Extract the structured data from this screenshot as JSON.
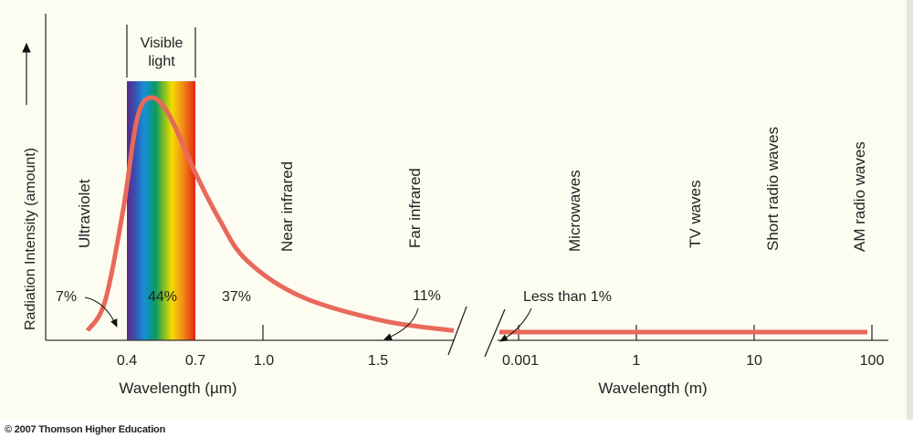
{
  "chart_data": {
    "type": "line",
    "ylabel": "Radiation Intensity (amount)",
    "left_axis": {
      "xlabel": "Wavelength (µm)",
      "ticks": [
        "0.4",
        "0.7",
        "1.0",
        "1.5"
      ],
      "tick_values": [
        0.4,
        0.7,
        1.0,
        1.5
      ]
    },
    "right_axis": {
      "xlabel": "Wavelength (m)",
      "ticks": [
        "0.001",
        "1",
        "10",
        "100"
      ]
    },
    "visible_band": {
      "label_line1": "Visible",
      "label_line2": "light",
      "range": [
        0.4,
        0.7
      ]
    },
    "regions": [
      "Ultraviolet",
      "Near infrared",
      "Far infrared",
      "Microwaves",
      "TV waves",
      "Short radio waves",
      "AM radio waves"
    ],
    "percentages": {
      "ultraviolet": "7%",
      "visible": "44%",
      "near_infrared": "37%",
      "far_infrared": "11%",
      "radio": "Less than 1%"
    },
    "series": [
      {
        "x": [
          0.228,
          0.304,
          0.384,
          0.444,
          0.504,
          0.584,
          0.7,
          0.804,
          0.924,
          1.164,
          1.524,
          1.832
        ],
        "y": [
          0.04,
          0.16,
          0.54,
          0.91,
          1.0,
          0.93,
          0.69,
          0.5,
          0.33,
          0.18,
          0.08,
          0.04
        ]
      }
    ],
    "curve_color": "#e8695a",
    "grid": false,
    "legend": "none"
  },
  "footer": {
    "copyright": "© 2007 Thomson Higher Education"
  }
}
